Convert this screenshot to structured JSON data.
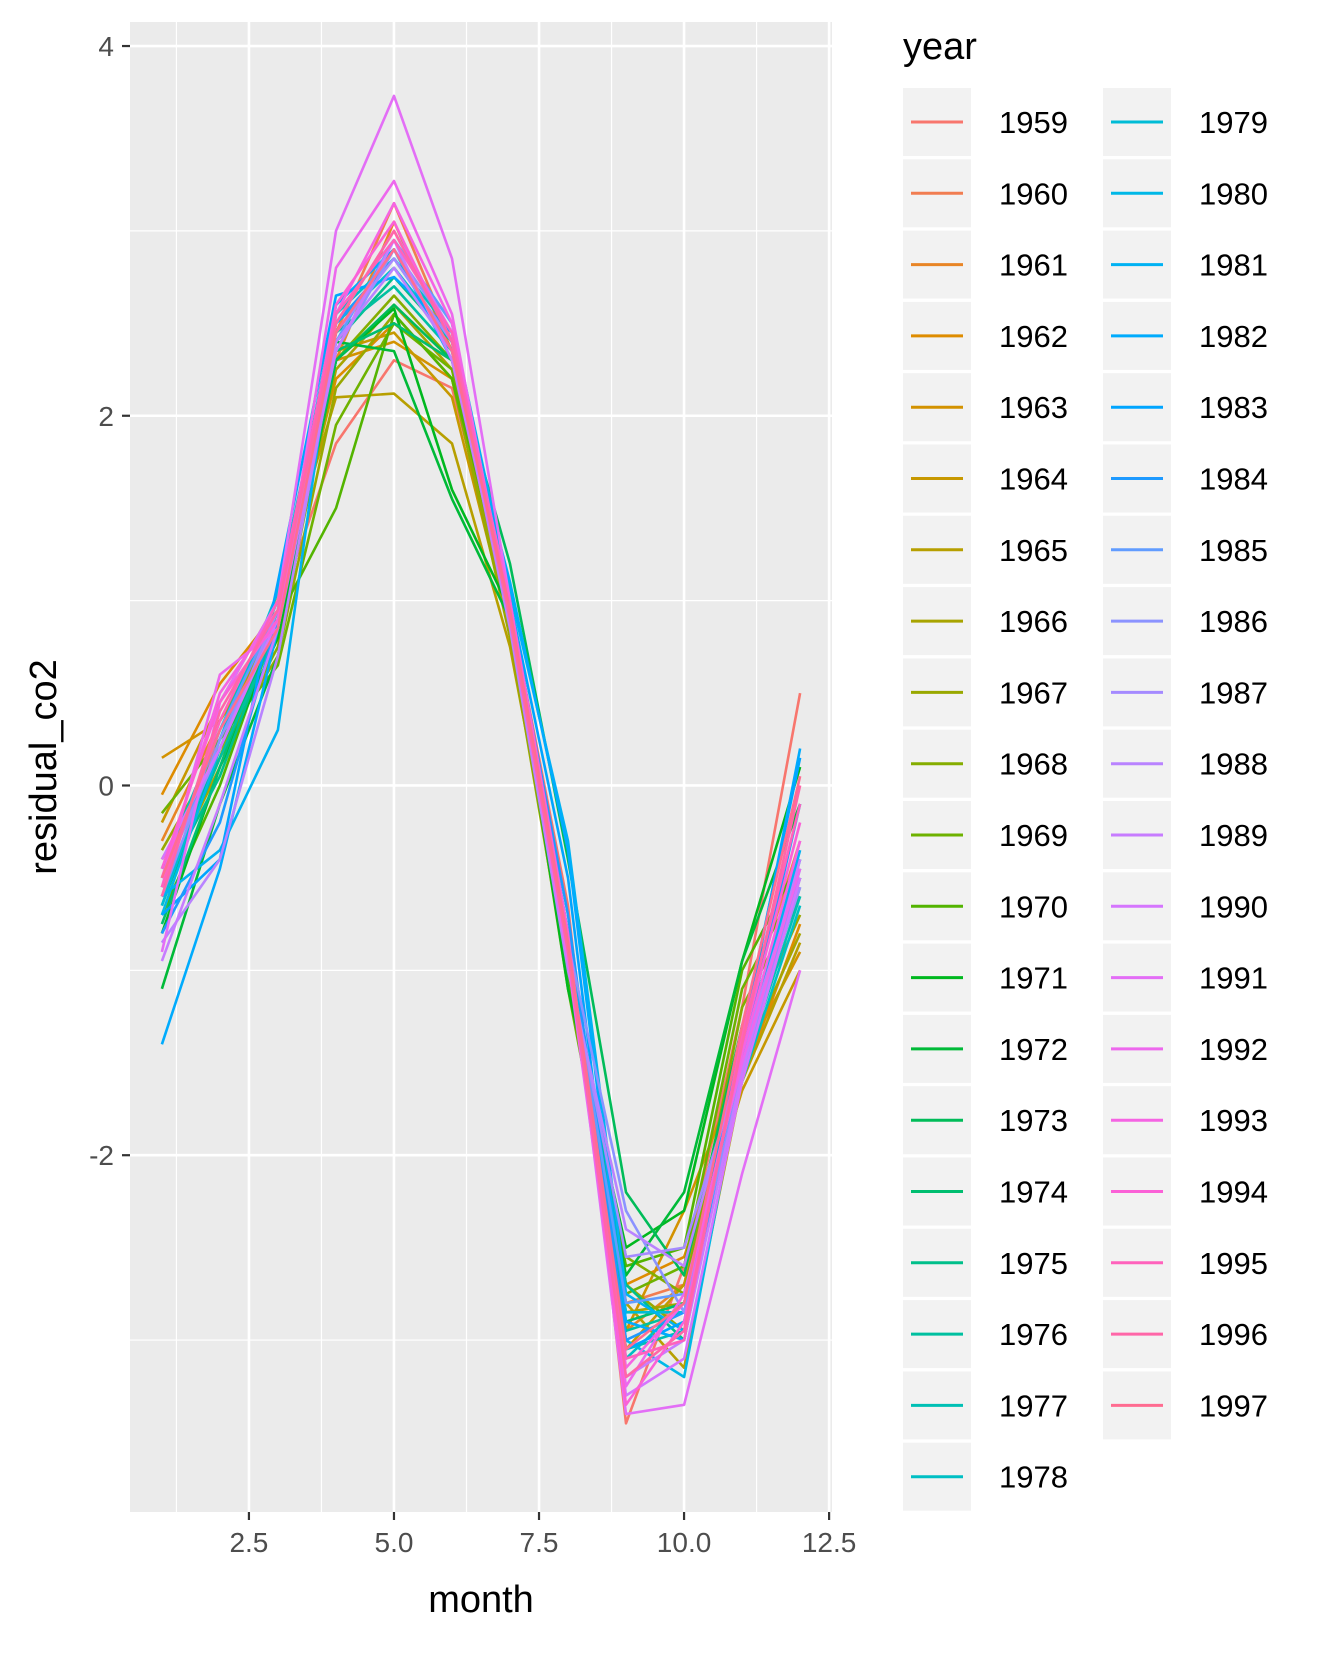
{
  "chart_data": {
    "type": "line",
    "xlabel": "month",
    "ylabel": "residual_co2",
    "legend_title": "year",
    "legend_position": "right",
    "grid": true,
    "xlim": [
      0.45,
      12.55
    ],
    "ylim": [
      -3.93,
      4.13
    ],
    "xticks": [
      2.5,
      5.0,
      7.5,
      10.0,
      12.5
    ],
    "xtick_labels": [
      "2.5",
      "5.0",
      "7.5",
      "10.0",
      "12.5"
    ],
    "yticks": [
      -2,
      0,
      2,
      4
    ],
    "ytick_labels": [
      "-2",
      "0",
      "2",
      "4"
    ],
    "x": [
      1,
      2,
      3,
      4,
      5,
      6,
      7,
      8,
      9,
      10,
      11,
      12
    ],
    "series": [
      {
        "name": "1959",
        "color": "#F8766D",
        "values": [
          -0.45,
          0.25,
          0.95,
          1.85,
          2.3,
          2.15,
          0.95,
          -0.65,
          -3.45,
          -2.6,
          -1.2,
          0.5
        ]
      },
      {
        "name": "1960",
        "color": "#F17D51",
        "values": [
          -0.5,
          0.2,
          0.85,
          2.45,
          3.15,
          2.4,
          0.9,
          -0.85,
          -2.8,
          -2.7,
          -1.3,
          -0.3
        ]
      },
      {
        "name": "1961",
        "color": "#E88526",
        "values": [
          -0.3,
          0.35,
          0.9,
          2.3,
          3.05,
          2.35,
          1.0,
          -0.9,
          -2.95,
          -2.7,
          -1.4,
          -0.5
        ]
      },
      {
        "name": "1962",
        "color": "#DE8C00",
        "values": [
          -0.05,
          0.55,
          0.95,
          2.2,
          2.5,
          2.3,
          0.95,
          -0.95,
          -2.7,
          -2.55,
          -1.6,
          -0.75
        ]
      },
      {
        "name": "1963",
        "color": "#D39200",
        "values": [
          0.15,
          0.35,
          0.85,
          2.3,
          2.4,
          2.2,
          0.9,
          -0.9,
          -2.95,
          -2.3,
          -1.5,
          -0.9
        ]
      },
      {
        "name": "1964",
        "color": "#C79800",
        "values": [
          -0.2,
          0.45,
          1.0,
          2.35,
          2.45,
          2.1,
          0.85,
          -0.8,
          -3.05,
          -2.7,
          -1.65,
          -1.0
        ]
      },
      {
        "name": "1965",
        "color": "#B79F00",
        "values": [
          -0.4,
          0.15,
          1.05,
          2.1,
          2.12,
          1.85,
          0.75,
          -0.9,
          -2.8,
          -3.15,
          -1.6,
          -0.85
        ]
      },
      {
        "name": "1966",
        "color": "#A8A400",
        "values": [
          -0.55,
          0.1,
          0.8,
          2.25,
          2.6,
          2.25,
          0.85,
          -1.0,
          -2.85,
          -2.8,
          -1.5,
          -0.8
        ]
      },
      {
        "name": "1967",
        "color": "#99A800",
        "values": [
          -0.35,
          0.2,
          0.7,
          2.15,
          2.55,
          2.2,
          0.8,
          -1.05,
          -2.7,
          -2.95,
          -1.4,
          -0.7
        ]
      },
      {
        "name": "1968",
        "color": "#85AD00",
        "values": [
          -0.6,
          0.15,
          0.75,
          2.3,
          2.65,
          2.3,
          0.95,
          -1.0,
          -2.55,
          -2.75,
          -1.2,
          -0.6
        ]
      },
      {
        "name": "1969",
        "color": "#6EB200",
        "values": [
          -0.15,
          0.25,
          0.65,
          1.95,
          2.5,
          2.25,
          0.9,
          -1.1,
          -2.75,
          -2.6,
          -1.1,
          -0.5
        ]
      },
      {
        "name": "1970",
        "color": "#53B400",
        "values": [
          -0.7,
          0.0,
          0.9,
          1.5,
          2.55,
          2.2,
          1.0,
          -1.05,
          -2.6,
          -2.5,
          -1.0,
          -0.4
        ]
      },
      {
        "name": "1971",
        "color": "#00B81F",
        "values": [
          -0.8,
          0.1,
          0.8,
          2.3,
          2.58,
          1.6,
          0.95,
          -1.1,
          -2.5,
          -2.3,
          -0.95,
          0.1
        ]
      },
      {
        "name": "1972",
        "color": "#00BA38",
        "values": [
          -1.1,
          -0.1,
          0.7,
          2.4,
          2.35,
          1.55,
          0.9,
          -1.0,
          -2.65,
          -2.2,
          -0.95,
          -0.1
        ]
      },
      {
        "name": "1973",
        "color": "#00BC59",
        "values": [
          -0.65,
          0.2,
          0.85,
          2.3,
          2.6,
          2.3,
          1.2,
          -0.4,
          -2.2,
          -2.65,
          -1.3,
          -0.6
        ]
      },
      {
        "name": "1974",
        "color": "#00BE70",
        "values": [
          -0.75,
          0.1,
          0.95,
          2.35,
          2.5,
          2.3,
          1.0,
          -0.8,
          -2.9,
          -2.8,
          -1.4,
          -0.4
        ]
      },
      {
        "name": "1975",
        "color": "#00BF8A",
        "values": [
          -0.55,
          0.05,
          0.9,
          2.4,
          2.75,
          2.4,
          0.95,
          -0.9,
          -2.7,
          -3.0,
          -1.5,
          -0.5
        ]
      },
      {
        "name": "1976",
        "color": "#00C0A0",
        "values": [
          -0.6,
          0.15,
          0.85,
          2.45,
          2.7,
          2.35,
          0.9,
          -0.95,
          -2.95,
          -2.85,
          -1.5,
          -0.55
        ]
      },
      {
        "name": "1977",
        "color": "#00C0B5",
        "values": [
          -0.5,
          0.2,
          0.95,
          2.5,
          2.8,
          2.4,
          0.95,
          -0.85,
          -3.05,
          -2.95,
          -1.55,
          -0.6
        ]
      },
      {
        "name": "1978",
        "color": "#00BFC4",
        "values": [
          -0.45,
          0.3,
          1.0,
          2.55,
          2.85,
          2.45,
          0.9,
          -0.8,
          -3.1,
          -2.8,
          -1.6,
          -0.65
        ]
      },
      {
        "name": "1979",
        "color": "#00BCD6",
        "values": [
          -0.65,
          0.25,
          1.05,
          2.5,
          2.8,
          2.4,
          0.95,
          -0.85,
          -2.85,
          -2.85,
          -1.45,
          -0.5
        ]
      },
      {
        "name": "1980",
        "color": "#00B8E7",
        "values": [
          -0.7,
          0.2,
          0.95,
          2.6,
          2.9,
          2.35,
          1.0,
          -0.8,
          -3.0,
          -3.2,
          -1.55,
          -0.4
        ]
      },
      {
        "name": "1981",
        "color": "#00B2F3",
        "values": [
          -0.6,
          -0.35,
          0.3,
          2.55,
          2.95,
          2.5,
          1.05,
          -0.3,
          -2.75,
          -2.95,
          -1.5,
          -0.35
        ]
      },
      {
        "name": "1982",
        "color": "#00ABFD",
        "values": [
          -1.4,
          -0.45,
          0.85,
          2.6,
          2.9,
          2.3,
          1.1,
          -0.35,
          -2.9,
          -3.0,
          -1.4,
          0.2
        ]
      },
      {
        "name": "1983",
        "color": "#00A5FF",
        "values": [
          -0.7,
          -0.4,
          1.1,
          2.65,
          2.75,
          2.45,
          1.0,
          -0.5,
          -3.05,
          -2.9,
          -1.35,
          0.15
        ]
      },
      {
        "name": "1984",
        "color": "#1E9AFF",
        "values": [
          -0.8,
          -0.2,
          0.9,
          2.5,
          2.85,
          2.4,
          0.95,
          -0.7,
          -3.0,
          -2.85,
          -1.45,
          -0.1
        ]
      },
      {
        "name": "1985",
        "color": "#619CFF",
        "values": [
          -0.55,
          0.3,
          0.95,
          2.4,
          2.95,
          2.5,
          0.9,
          -0.9,
          -2.8,
          -2.75,
          -1.6,
          -0.45
        ]
      },
      {
        "name": "1986",
        "color": "#8B93FF",
        "values": [
          -0.6,
          0.25,
          0.9,
          2.35,
          2.9,
          2.45,
          0.95,
          -0.85,
          -2.3,
          -2.85,
          -1.55,
          -0.5
        ]
      },
      {
        "name": "1987",
        "color": "#A58AFF",
        "values": [
          -0.5,
          0.2,
          0.95,
          2.45,
          2.85,
          2.4,
          0.9,
          -0.95,
          -2.55,
          -2.5,
          -1.5,
          -0.55
        ]
      },
      {
        "name": "1988",
        "color": "#B983FF",
        "values": [
          -0.85,
          -0.4,
          0.7,
          2.4,
          2.8,
          2.35,
          0.85,
          -1.0,
          -2.4,
          -2.6,
          -1.45,
          -0.45
        ]
      },
      {
        "name": "1989",
        "color": "#C77CFF",
        "values": [
          -0.95,
          -0.1,
          0.85,
          2.35,
          2.95,
          2.3,
          0.9,
          -0.9,
          -3.2,
          -3.0,
          -1.55,
          -0.4
        ]
      },
      {
        "name": "1990",
        "color": "#D575FE",
        "values": [
          -0.4,
          0.2,
          0.9,
          2.5,
          3.0,
          2.45,
          0.95,
          -0.85,
          -3.3,
          -3.1,
          -1.6,
          -0.5
        ]
      },
      {
        "name": "1991",
        "color": "#E36EF6",
        "values": [
          -0.9,
          0.45,
          1.0,
          3.0,
          3.73,
          2.85,
          1.0,
          -0.85,
          -3.4,
          -3.35,
          -2.1,
          -1.0
        ]
      },
      {
        "name": "1992",
        "color": "#ED68ED",
        "values": [
          -0.55,
          0.6,
          0.85,
          2.8,
          3.27,
          2.55,
          0.9,
          -0.95,
          -3.25,
          -2.75,
          -1.5,
          -0.45
        ]
      },
      {
        "name": "1993",
        "color": "#F564E3",
        "values": [
          -0.5,
          0.5,
          0.95,
          2.55,
          3.15,
          2.5,
          0.95,
          -0.85,
          -3.15,
          -2.8,
          -1.45,
          -0.3
        ]
      },
      {
        "name": "1994",
        "color": "#FB61D7",
        "values": [
          -0.45,
          0.45,
          0.9,
          2.6,
          3.05,
          2.4,
          1.0,
          -0.8,
          -3.35,
          -2.9,
          -1.4,
          -0.2
        ]
      },
      {
        "name": "1995",
        "color": "#FF62BC",
        "values": [
          -0.55,
          0.35,
          1.0,
          2.55,
          2.95,
          2.45,
          0.95,
          -0.85,
          -3.1,
          -3.0,
          -1.35,
          -0.1
        ]
      },
      {
        "name": "1996",
        "color": "#FF66A8",
        "values": [
          -0.6,
          0.4,
          0.95,
          2.5,
          3.0,
          2.4,
          0.9,
          -0.9,
          -3.2,
          -2.95,
          -1.4,
          0.0
        ]
      },
      {
        "name": "1997",
        "color": "#FF6C91",
        "values": [
          -0.5,
          0.3,
          0.85,
          2.45,
          2.9,
          2.35,
          0.95,
          -0.85,
          -3.05,
          -2.8,
          -1.3,
          0.05
        ]
      }
    ]
  }
}
